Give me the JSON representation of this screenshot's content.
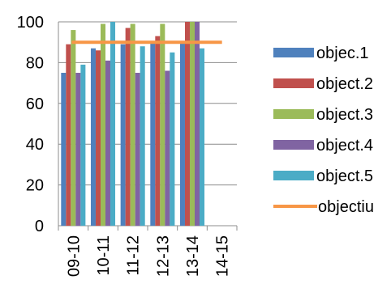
{
  "chart_data": {
    "type": "bar",
    "categories": [
      "09-10",
      "10-11",
      "11-12",
      "12-13",
      "13-14",
      "14-15"
    ],
    "series": [
      {
        "name": "objec.1",
        "color": "#4f81bd",
        "values": [
          75,
          87,
          89,
          90,
          90,
          null
        ]
      },
      {
        "name": "object.2",
        "color": "#c0504d",
        "values": [
          89,
          86,
          97,
          93,
          100,
          null
        ]
      },
      {
        "name": "object.3",
        "color": "#9bbb59",
        "values": [
          96,
          99,
          99,
          99,
          100,
          null
        ]
      },
      {
        "name": "object.4",
        "color": "#8064a2",
        "values": [
          75,
          81,
          75,
          76,
          100,
          null
        ]
      },
      {
        "name": "object.5",
        "color": "#4bacc6",
        "values": [
          79,
          100,
          88,
          85,
          87,
          null
        ]
      }
    ],
    "target_line": {
      "name": "objectiu",
      "color": "#f79646",
      "value": 90
    },
    "y_ticks": [
      0,
      20,
      40,
      60,
      80,
      100
    ],
    "ylim": [
      0,
      100
    ],
    "grid": true,
    "legend_position": "right"
  }
}
